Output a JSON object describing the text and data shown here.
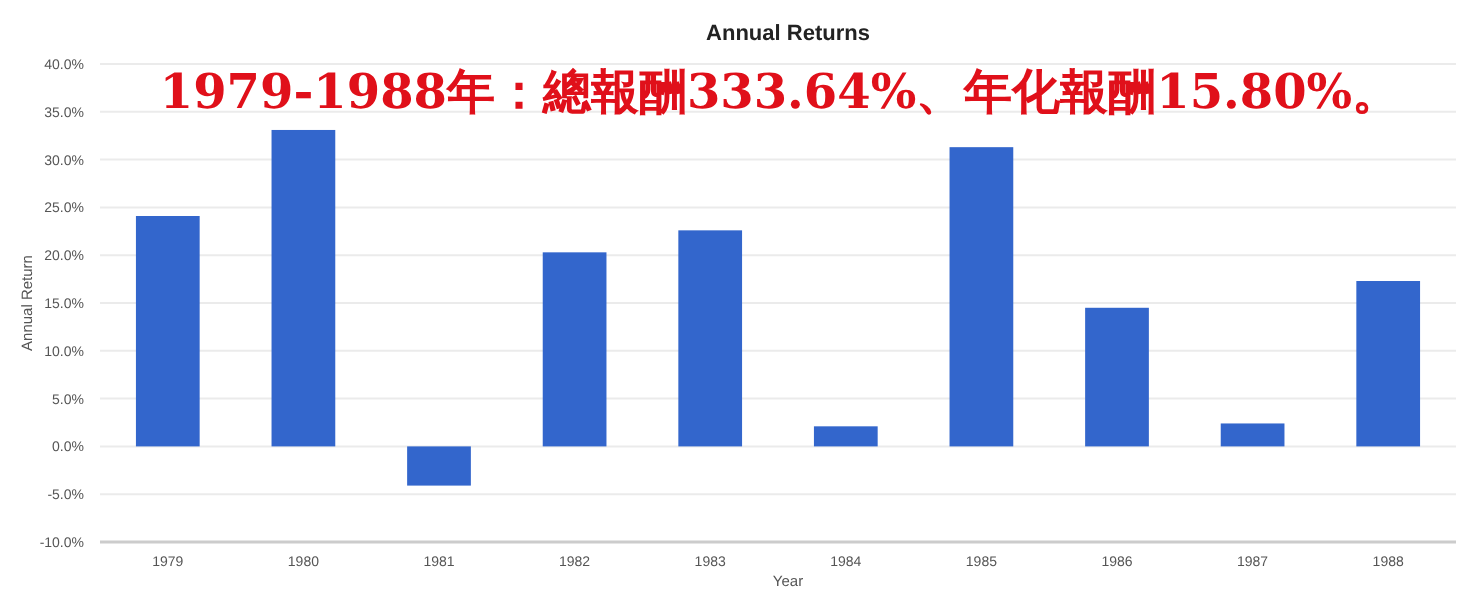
{
  "chart_data": {
    "type": "bar",
    "title": "Annual Returns",
    "xlabel": "Year",
    "ylabel": "Annual Return",
    "annotations": [
      "1979-1988年：總報酬333.64%、年化報酬15.80%。"
    ],
    "categories": [
      "1979",
      "1980",
      "1981",
      "1982",
      "1983",
      "1984",
      "1985",
      "1986",
      "1987",
      "1988"
    ],
    "values": [
      24.1,
      33.1,
      -4.1,
      20.3,
      22.6,
      2.1,
      31.3,
      14.5,
      2.4,
      17.3
    ],
    "color": "#3366cc",
    "ylim": [
      -10,
      40
    ],
    "yticks": [
      {
        "value": -10,
        "label": "-10.0%"
      },
      {
        "value": -5,
        "label": "-5.0%"
      },
      {
        "value": 0,
        "label": "0.0%"
      },
      {
        "value": 5,
        "label": "5.0%"
      },
      {
        "value": 10,
        "label": "10.0%"
      },
      {
        "value": 15,
        "label": "15.0%"
      },
      {
        "value": 20,
        "label": "20.0%"
      },
      {
        "value": 25,
        "label": "25.0%"
      },
      {
        "value": 30,
        "label": "30.0%"
      },
      {
        "value": 35,
        "label": "35.0%"
      },
      {
        "value": 40,
        "label": "40.0%"
      }
    ],
    "grid": "y"
  }
}
